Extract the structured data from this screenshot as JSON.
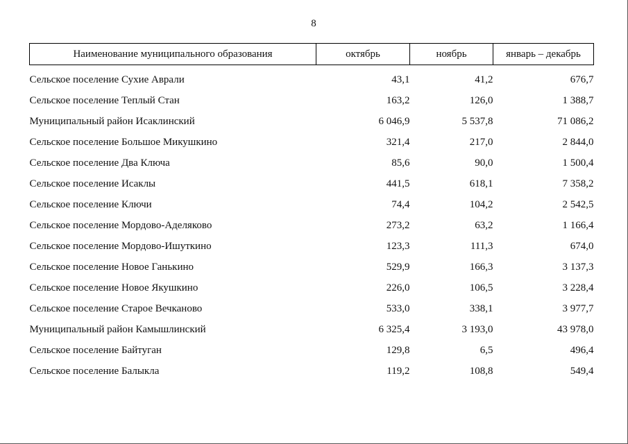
{
  "page": {
    "number": "8"
  },
  "table": {
    "headers": [
      "Наименование муниципального образования",
      "октябрь",
      "ноябрь",
      "январь – декабрь"
    ],
    "rows": [
      {
        "name": "Сельское поселение Сухие Аврали",
        "october": "43,1",
        "november": "41,2",
        "year": "676,7"
      },
      {
        "name": "Сельское поселение Теплый Стан",
        "october": "163,2",
        "november": "126,0",
        "year": "1 388,7"
      },
      {
        "name": "Муниципальный район Исаклинский",
        "october": "6 046,9",
        "november": "5 537,8",
        "year": "71 086,2"
      },
      {
        "name": "Сельское поселение Большое Микушкино",
        "october": "321,4",
        "november": "217,0",
        "year": "2 844,0"
      },
      {
        "name": "Сельское поселение Два Ключа",
        "october": "85,6",
        "november": "90,0",
        "year": "1 500,4"
      },
      {
        "name": "Сельское поселение Исаклы",
        "october": "441,5",
        "november": "618,1",
        "year": "7 358,2"
      },
      {
        "name": "Сельское поселение Ключи",
        "october": "74,4",
        "november": "104,2",
        "year": "2 542,5"
      },
      {
        "name": "Сельское поселение Мордово-Аделяково",
        "october": "273,2",
        "november": "63,2",
        "year": "1 166,4"
      },
      {
        "name": "Сельское поселение Мордово-Ишуткино",
        "october": "123,3",
        "november": "111,3",
        "year": "674,0"
      },
      {
        "name": "Сельское поселение Новое Ганькино",
        "october": "529,9",
        "november": "166,3",
        "year": "3 137,3"
      },
      {
        "name": "Сельское поселение Новое Якушкино",
        "october": "226,0",
        "november": "106,5",
        "year": "3 228,4"
      },
      {
        "name": "Сельское поселение Старое Вечканово",
        "october": "533,0",
        "november": "338,1",
        "year": "3 977,7"
      },
      {
        "name": "Муниципальный район Камышлинский",
        "october": "6 325,4",
        "november": "3 193,0",
        "year": "43 978,0"
      },
      {
        "name": "Сельское поселение Байтуган",
        "october": "129,8",
        "november": "6,5",
        "year": "496,4"
      },
      {
        "name": "Сельское поселение Балыкла",
        "october": "119,2",
        "november": "108,8",
        "year": "549,4"
      }
    ]
  }
}
